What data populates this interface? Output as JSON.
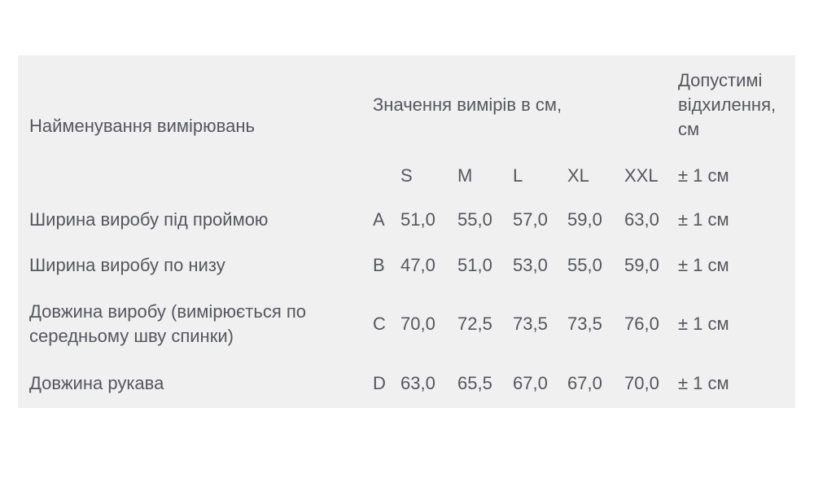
{
  "page": {
    "background": "#ffffff"
  },
  "panel": {
    "background": "#f0f0f1",
    "text_color": "#56575c"
  },
  "table": {
    "header": {
      "name_label": "Найменування вимірювань",
      "values_label": "Значення вимірів в см,",
      "tolerance_label": "Допустимі відхилення, см",
      "size_labels": [
        "S",
        "M",
        "L",
        "XL",
        "XXL"
      ],
      "tolerance_column_header": "± 1 см"
    },
    "rows": [
      {
        "name": "Ширина виробу під проймою",
        "letter": "A",
        "values": [
          "51,0",
          "55,0",
          "57,0",
          "59,0",
          "63,0"
        ],
        "tolerance": "± 1 см"
      },
      {
        "name": "Ширина виробу по низу",
        "letter": "B",
        "values": [
          "47,0",
          "51,0",
          "53,0",
          "55,0",
          "59,0"
        ],
        "tolerance": "± 1 см"
      },
      {
        "name": "Довжина виробу (вимірюється по середньому шву спинки)",
        "letter": "C",
        "values": [
          "70,0",
          "72,5",
          "73,5",
          "73,5",
          "76,0"
        ],
        "tolerance": "± 1 см"
      },
      {
        "name": "Довжина рукава",
        "letter": "D",
        "values": [
          "63,0",
          "65,5",
          "67,0",
          "67,0",
          "70,0"
        ],
        "tolerance": "± 1 см"
      }
    ]
  }
}
